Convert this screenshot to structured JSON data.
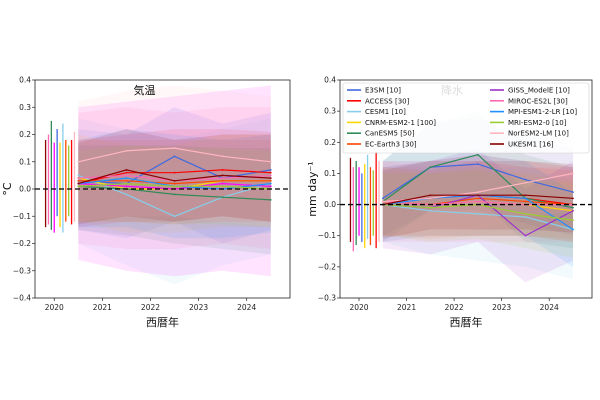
{
  "chart_data": [
    {
      "type": "line",
      "title": "気温",
      "xlabel": "西暦年",
      "ylabel": "°C",
      "xlim": [
        2019.6,
        2024.9
      ],
      "ylim": [
        -0.4,
        0.4
      ],
      "xticks": [
        2020,
        2021,
        2022,
        2023,
        2024
      ],
      "xtick_labels": [
        "2020",
        "2021",
        "2022",
        "2023",
        "2024"
      ],
      "yticks": [
        -0.4,
        -0.3,
        -0.2,
        -0.1,
        0.0,
        0.1,
        0.2,
        0.3,
        0.4
      ],
      "ytick_labels": [
        "−0.4",
        "−0.3",
        "−0.2",
        "−0.1",
        "0.0",
        "0.1",
        "0.2",
        "0.3",
        "0.4"
      ],
      "zero_line": 0,
      "grid": false,
      "x": [
        2020.5,
        2021.5,
        2022.5,
        2023.5,
        2024.5
      ],
      "spread_bars": [
        {
          "color": "#8b0000",
          "lo": -0.14,
          "hi": 0.18
        },
        {
          "color": "#ff69b4",
          "lo": -0.13,
          "hi": 0.2
        },
        {
          "color": "#2e8b57",
          "lo": -0.15,
          "hi": 0.25
        },
        {
          "color": "#ff00ff",
          "lo": -0.16,
          "hi": 0.17
        },
        {
          "color": "#4169e1",
          "lo": -0.1,
          "hi": 0.22
        },
        {
          "color": "#ffd700",
          "lo": -0.14,
          "hi": 0.17
        },
        {
          "color": "#87ceeb",
          "lo": -0.16,
          "hi": 0.24
        },
        {
          "color": "#ff4500",
          "lo": -0.12,
          "hi": 0.18
        },
        {
          "color": "#9acd32",
          "lo": -0.1,
          "hi": 0.16
        },
        {
          "color": "#ff0000",
          "lo": -0.13,
          "hi": 0.18
        },
        {
          "color": "#ffb6c1",
          "lo": -0.12,
          "hi": 0.21
        }
      ],
      "series": [
        {
          "color": "#4169e1",
          "values": [
            0.03,
            0.02,
            0.12,
            0.04,
            0.07
          ],
          "lo": [
            -0.15,
            -0.18,
            -0.12,
            -0.2,
            -0.15
          ],
          "hi": [
            0.22,
            0.2,
            0.3,
            0.24,
            0.28
          ]
        },
        {
          "color": "#ff0000",
          "values": [
            0.02,
            0.06,
            0.06,
            0.07,
            0.06
          ],
          "lo": [
            -0.14,
            -0.12,
            -0.12,
            -0.1,
            -0.12
          ],
          "hi": [
            0.18,
            0.2,
            0.22,
            0.22,
            0.21
          ]
        },
        {
          "color": "#87ceeb",
          "values": [
            0.05,
            -0.02,
            -0.1,
            -0.03,
            0.02
          ],
          "lo": [
            -0.2,
            -0.28,
            -0.35,
            -0.28,
            -0.24
          ],
          "hi": [
            0.26,
            0.22,
            0.18,
            0.22,
            0.26
          ]
        },
        {
          "color": "#ffd700",
          "values": [
            0.04,
            0.0,
            0.0,
            0.03,
            0.03
          ],
          "lo": [
            -0.12,
            -0.16,
            -0.16,
            -0.14,
            -0.14
          ],
          "hi": [
            0.2,
            0.16,
            0.16,
            0.2,
            0.2
          ]
        },
        {
          "color": "#2e8b57",
          "values": [
            0.01,
            0.0,
            -0.02,
            -0.03,
            -0.04
          ],
          "lo": [
            -0.15,
            -0.17,
            -0.2,
            -0.22,
            -0.24
          ],
          "hi": [
            0.16,
            0.16,
            0.16,
            0.15,
            0.15
          ]
        },
        {
          "color": "#ff4500",
          "values": [
            0.03,
            0.03,
            0.02,
            0.03,
            0.03
          ],
          "lo": [
            -0.12,
            -0.12,
            -0.13,
            -0.12,
            -0.12
          ],
          "hi": [
            0.18,
            0.18,
            0.18,
            0.18,
            0.18
          ]
        },
        {
          "color": "#ff00ff",
          "values": [
            0.02,
            0.01,
            0.0,
            0.02,
            0.01
          ],
          "lo": [
            -0.26,
            -0.3,
            -0.32,
            -0.3,
            -0.32
          ],
          "hi": [
            0.3,
            0.32,
            0.34,
            0.36,
            0.38
          ]
        },
        {
          "color": "#ff69b4",
          "values": [
            0.04,
            0.05,
            0.03,
            0.04,
            0.05
          ],
          "lo": [
            -0.2,
            -0.22,
            -0.22,
            -0.2,
            -0.22
          ],
          "hi": [
            0.28,
            0.3,
            0.28,
            0.3,
            0.3
          ]
        },
        {
          "color": "#1e90ff",
          "values": [
            0.02,
            0.04,
            0.01,
            0.0,
            0.02
          ],
          "lo": [
            -0.14,
            -0.14,
            -0.18,
            -0.18,
            -0.16
          ],
          "hi": [
            0.18,
            0.22,
            0.2,
            0.18,
            0.2
          ]
        },
        {
          "color": "#9acd32",
          "values": [
            0.01,
            0.02,
            0.01,
            0.01,
            0.0
          ],
          "lo": [
            -0.12,
            -0.12,
            -0.13,
            -0.13,
            -0.14
          ],
          "hi": [
            0.14,
            0.16,
            0.15,
            0.15,
            0.14
          ]
        },
        {
          "color": "#ffb6c1",
          "values": [
            0.1,
            0.14,
            0.15,
            0.12,
            0.1
          ],
          "lo": [
            -0.12,
            -0.1,
            -0.1,
            -0.12,
            -0.14
          ],
          "hi": [
            0.32,
            0.36,
            0.38,
            0.36,
            0.34
          ]
        },
        {
          "color": "#8b0000",
          "values": [
            0.02,
            0.07,
            0.03,
            0.05,
            0.04
          ],
          "lo": [
            -0.13,
            -0.1,
            -0.12,
            -0.1,
            -0.12
          ],
          "hi": [
            0.17,
            0.22,
            0.18,
            0.2,
            0.2
          ]
        }
      ]
    },
    {
      "type": "line",
      "title": "降水",
      "xlabel": "西暦年",
      "ylabel": "mm day⁻¹",
      "xlim": [
        2019.6,
        2024.9
      ],
      "ylim": [
        -0.3,
        0.4
      ],
      "xticks": [
        2020,
        2021,
        2022,
        2023,
        2024
      ],
      "xtick_labels": [
        "2020",
        "2021",
        "2022",
        "2023",
        "2024"
      ],
      "yticks": [
        -0.3,
        -0.2,
        -0.1,
        0.0,
        0.1,
        0.2,
        0.3,
        0.4
      ],
      "ytick_labels": [
        "−0.3",
        "−0.2",
        "−0.1",
        "0.0",
        "0.1",
        "0.2",
        "0.3",
        "0.4"
      ],
      "zero_line": 0,
      "grid": false,
      "legend_placement": "top",
      "legend": [
        {
          "label": "E3SM [10]",
          "color": "#4169e1"
        },
        {
          "label": "ACCESS [30]",
          "color": "#ff0000"
        },
        {
          "label": "CESM1 [10]",
          "color": "#87ceeb"
        },
        {
          "label": "CNRM-ESM2-1 [100]",
          "color": "#ffd700"
        },
        {
          "label": "CanESM5 [50]",
          "color": "#2e8b57"
        },
        {
          "label": "EC-Earth3 [30]",
          "color": "#ff4500"
        },
        {
          "label": "GISS_ModelE [10]",
          "color": "#9932cc"
        },
        {
          "label": "MIROC-ES2L [30]",
          "color": "#ff69b4"
        },
        {
          "label": "MPI-ESM1-2-LR [10]",
          "color": "#1e90ff"
        },
        {
          "label": "MRI-ESM2-0 [10]",
          "color": "#9acd32"
        },
        {
          "label": "NorESM2-LM [10]",
          "color": "#ffb6c1"
        },
        {
          "label": "UKESM1 [16]",
          "color": "#8b0000"
        }
      ],
      "x": [
        2020.5,
        2021.5,
        2022.5,
        2023.5,
        2024.5
      ],
      "spread_bars": [
        {
          "color": "#8b0000",
          "lo": -0.12,
          "hi": 0.15
        },
        {
          "color": "#ff69b4",
          "lo": -0.15,
          "hi": 0.12
        },
        {
          "color": "#2e8b57",
          "lo": -0.13,
          "hi": 0.14
        },
        {
          "color": "#ff00ff",
          "lo": -0.1,
          "hi": 0.12
        },
        {
          "color": "#4169e1",
          "lo": -0.12,
          "hi": 0.1
        },
        {
          "color": "#ffd700",
          "lo": -0.14,
          "hi": 0.13
        },
        {
          "color": "#87ceeb",
          "lo": -0.11,
          "hi": 0.16
        },
        {
          "color": "#ff4500",
          "lo": -0.13,
          "hi": 0.12
        },
        {
          "color": "#9acd32",
          "lo": -0.1,
          "hi": 0.11
        },
        {
          "color": "#ff0000",
          "lo": -0.14,
          "hi": 0.17
        },
        {
          "color": "#ffb6c1",
          "lo": -0.12,
          "hi": 0.14
        }
      ],
      "series": [
        {
          "color": "#4169e1",
          "values": [
            0.02,
            0.12,
            0.13,
            0.08,
            0.04
          ],
          "lo": [
            -0.1,
            -0.02,
            -0.02,
            -0.06,
            -0.1
          ],
          "hi": [
            0.14,
            0.26,
            0.28,
            0.22,
            0.18
          ]
        },
        {
          "color": "#ff0000",
          "values": [
            0.01,
            0.02,
            0.03,
            0.02,
            0.0
          ],
          "lo": [
            -0.1,
            -0.1,
            -0.1,
            -0.1,
            -0.12
          ],
          "hi": [
            0.12,
            0.14,
            0.16,
            0.14,
            0.12
          ]
        },
        {
          "color": "#87ceeb",
          "values": [
            0.0,
            -0.02,
            -0.03,
            -0.04,
            -0.08
          ],
          "lo": [
            -0.12,
            -0.16,
            -0.18,
            -0.2,
            -0.24
          ],
          "hi": [
            0.12,
            0.12,
            0.12,
            0.12,
            0.08
          ]
        },
        {
          "color": "#ffd700",
          "values": [
            0.01,
            0.0,
            0.01,
            0.0,
            -0.02
          ],
          "lo": [
            -0.1,
            -0.1,
            -0.1,
            -0.1,
            -0.12
          ],
          "hi": [
            0.12,
            0.1,
            0.12,
            0.1,
            0.08
          ]
        },
        {
          "color": "#2e8b57",
          "values": [
            0.01,
            0.12,
            0.16,
            0.02,
            -0.01
          ],
          "lo": [
            -0.12,
            -0.02,
            0.02,
            -0.12,
            -0.14
          ],
          "hi": [
            0.14,
            0.26,
            0.3,
            0.16,
            0.12
          ]
        },
        {
          "color": "#ff4500",
          "values": [
            0.01,
            0.0,
            0.02,
            0.01,
            0.0
          ],
          "lo": [
            -0.1,
            -0.11,
            -0.1,
            -0.1,
            -0.11
          ],
          "hi": [
            0.12,
            0.11,
            0.14,
            0.12,
            0.11
          ]
        },
        {
          "color": "#9932cc",
          "values": [
            0.0,
            -0.01,
            0.03,
            -0.1,
            -0.02
          ],
          "lo": [
            -0.14,
            -0.16,
            -0.12,
            -0.25,
            -0.18
          ],
          "hi": [
            0.14,
            0.14,
            0.18,
            0.05,
            0.14
          ]
        },
        {
          "color": "#ff69b4",
          "values": [
            0.01,
            0.0,
            0.01,
            0.0,
            0.0
          ],
          "lo": [
            -0.12,
            -0.12,
            -0.12,
            -0.12,
            -0.12
          ],
          "hi": [
            0.14,
            0.12,
            0.14,
            0.12,
            0.12
          ]
        },
        {
          "color": "#1e90ff",
          "values": [
            0.0,
            0.02,
            0.03,
            0.02,
            -0.08
          ],
          "lo": [
            -0.12,
            -0.1,
            -0.1,
            -0.1,
            -0.2
          ],
          "hi": [
            0.12,
            0.14,
            0.16,
            0.14,
            0.04
          ]
        },
        {
          "color": "#9acd32",
          "values": [
            0.0,
            -0.01,
            0.0,
            -0.03,
            -0.05
          ],
          "lo": [
            -0.1,
            -0.12,
            -0.11,
            -0.14,
            -0.17
          ],
          "hi": [
            0.1,
            0.1,
            0.11,
            0.08,
            0.07
          ]
        },
        {
          "color": "#ffb6c1",
          "values": [
            0.01,
            0.02,
            0.04,
            0.07,
            0.1
          ],
          "lo": [
            -0.12,
            -0.1,
            -0.08,
            -0.04,
            -0.02
          ],
          "hi": [
            0.14,
            0.14,
            0.16,
            0.18,
            0.22
          ]
        },
        {
          "color": "#8b0000",
          "values": [
            0.0,
            0.03,
            0.03,
            0.03,
            0.02
          ],
          "lo": [
            -0.11,
            -0.08,
            -0.08,
            -0.08,
            -0.09
          ],
          "hi": [
            0.11,
            0.14,
            0.14,
            0.14,
            0.13
          ]
        }
      ]
    }
  ]
}
